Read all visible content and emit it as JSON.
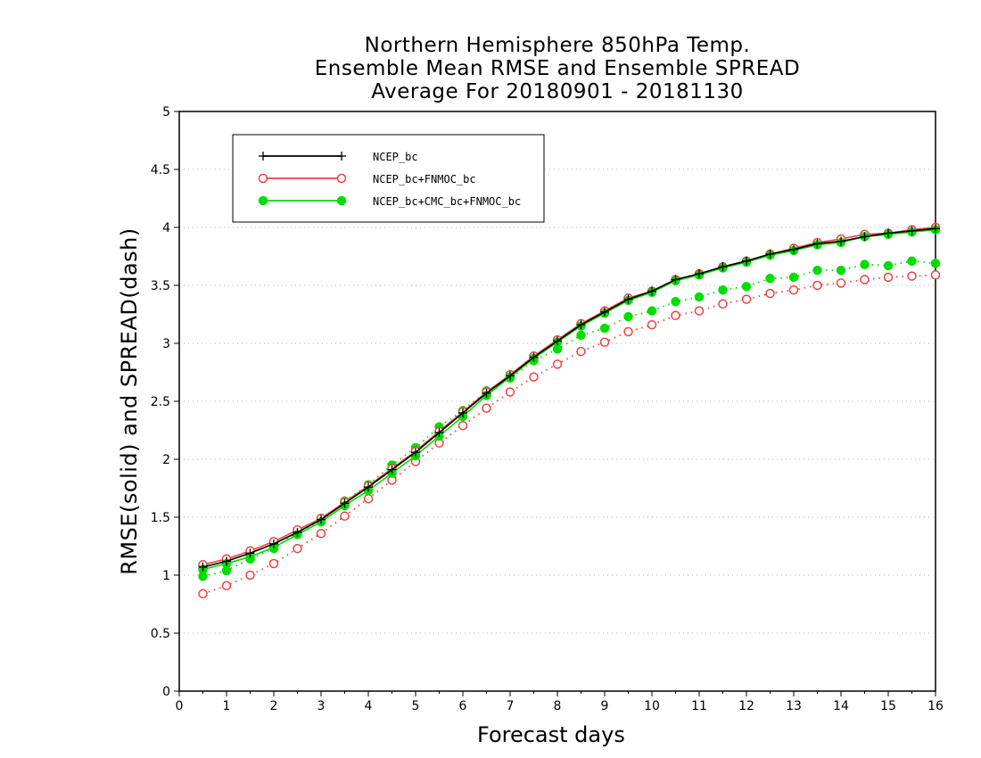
{
  "title_lines": [
    "Northern Hemisphere 850hPa Temp.",
    "Ensemble Mean RMSE and Ensemble SPREAD",
    "Average For 20180901 - 20181130"
  ],
  "colors": {
    "black": "#000000",
    "red": "#f04040",
    "green": "#00dd00",
    "grid": "#b0b0b0"
  },
  "chart_data": {
    "type": "line",
    "xlabel": "Forecast days",
    "ylabel": "RMSE(solid) and SPREAD(dash)",
    "xlim": [
      0,
      16
    ],
    "ylim": [
      0,
      5
    ],
    "xticks": [
      0,
      1,
      2,
      3,
      4,
      5,
      6,
      7,
      8,
      9,
      10,
      11,
      12,
      13,
      14,
      15,
      16
    ],
    "yticks": [
      0,
      0.5,
      1,
      1.5,
      2,
      2.5,
      3,
      3.5,
      4,
      4.5,
      5
    ],
    "ytick_labels": [
      "0",
      "0.5",
      "1",
      "1.5",
      "2",
      "2.5",
      "3",
      "3.5",
      "4",
      "4.5",
      "5"
    ],
    "grid": "horizontal dotted",
    "legend_position": "top-left",
    "x": [
      0.5,
      1,
      1.5,
      2,
      2.5,
      3,
      3.5,
      4,
      4.5,
      5,
      5.5,
      6,
      6.5,
      7,
      7.5,
      8,
      8.5,
      9,
      9.5,
      10,
      10.5,
      11,
      11.5,
      12,
      12.5,
      13,
      13.5,
      14,
      14.5,
      15,
      15.5,
      16
    ],
    "series": [
      {
        "name": "NCEP_bc",
        "color": "black",
        "style": "solid",
        "marker": "plus",
        "values": [
          1.07,
          1.12,
          1.19,
          1.27,
          1.37,
          1.48,
          1.62,
          1.76,
          1.91,
          2.06,
          2.23,
          2.4,
          2.57,
          2.72,
          2.88,
          3.02,
          3.16,
          3.27,
          3.38,
          3.45,
          3.55,
          3.6,
          3.66,
          3.71,
          3.77,
          3.81,
          3.86,
          3.88,
          3.92,
          3.95,
          3.97,
          3.99
        ]
      },
      {
        "name": "NCEP_bc+FNMOC_bc",
        "color": "red",
        "style": "solid",
        "marker": "open-circle",
        "values": [
          1.09,
          1.14,
          1.21,
          1.29,
          1.39,
          1.49,
          1.63,
          1.77,
          1.92,
          2.07,
          2.24,
          2.41,
          2.58,
          2.73,
          2.89,
          3.03,
          3.17,
          3.28,
          3.39,
          3.45,
          3.55,
          3.6,
          3.66,
          3.71,
          3.77,
          3.82,
          3.87,
          3.9,
          3.94,
          3.95,
          3.98,
          4.0
        ]
      },
      {
        "name": "NCEP_bc+FNMOC_bc",
        "color": "red",
        "style": "dotted",
        "marker": "open-circle",
        "values": [
          0.84,
          0.91,
          1.0,
          1.1,
          1.23,
          1.36,
          1.51,
          1.66,
          1.82,
          1.98,
          2.14,
          2.29,
          2.44,
          2.58,
          2.71,
          2.82,
          2.93,
          3.01,
          3.1,
          3.16,
          3.24,
          3.28,
          3.34,
          3.38,
          3.43,
          3.46,
          3.5,
          3.52,
          3.55,
          3.57,
          3.58,
          3.59
        ]
      },
      {
        "name": "NCEP_bc+CMC_bc+FNMOC_bc",
        "color": "green",
        "style": "solid",
        "marker": "filled-circle",
        "values": [
          1.05,
          1.1,
          1.16,
          1.24,
          1.35,
          1.46,
          1.6,
          1.73,
          1.88,
          2.03,
          2.2,
          2.37,
          2.55,
          2.71,
          2.87,
          3.01,
          3.15,
          3.26,
          3.37,
          3.44,
          3.54,
          3.59,
          3.65,
          3.7,
          3.76,
          3.8,
          3.85,
          3.87,
          3.92,
          3.94,
          3.96,
          3.98
        ]
      },
      {
        "name": "NCEP_bc+CMC_bc+FNMOC_bc",
        "color": "green",
        "style": "dotted",
        "marker": "filled-circle",
        "values": [
          0.99,
          1.04,
          1.14,
          1.23,
          1.37,
          1.47,
          1.64,
          1.78,
          1.95,
          2.1,
          2.28,
          2.42,
          2.59,
          2.7,
          2.85,
          2.95,
          3.07,
          3.13,
          3.23,
          3.28,
          3.36,
          3.4,
          3.46,
          3.49,
          3.56,
          3.57,
          3.63,
          3.63,
          3.68,
          3.67,
          3.71,
          3.69
        ]
      }
    ],
    "legend": [
      {
        "label": "NCEP_bc",
        "color": "black",
        "marker": "plus"
      },
      {
        "label": "NCEP_bc+FNMOC_bc",
        "color": "red",
        "marker": "open-circle"
      },
      {
        "label": "NCEP_bc+CMC_bc+FNMOC_bc",
        "color": "green",
        "marker": "filled-circle"
      }
    ]
  }
}
